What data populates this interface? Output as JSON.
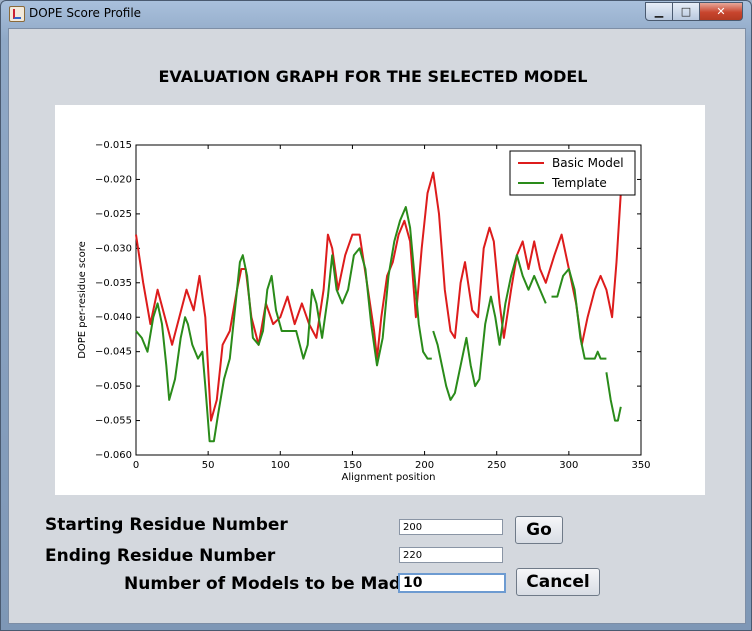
{
  "window": {
    "title": "DOPE Score Profile",
    "minimize_glyph": "▁",
    "maximize_glyph": "□",
    "close_glyph": "✕"
  },
  "heading": "EVALUATION GRAPH FOR THE SELECTED MODEL",
  "form": {
    "start_label": "Starting Residue Number",
    "start_value": "200",
    "end_label": "Ending Residue Number",
    "end_value": "220",
    "models_label": "Number of Models to be Made",
    "models_value": "10",
    "go_label": "Go",
    "cancel_label": "Cancel"
  },
  "chart_data": {
    "type": "line",
    "title": "",
    "xlabel": "Alignment position",
    "ylabel": "DOPE per-residue score",
    "xlim": [
      0,
      350
    ],
    "ylim": [
      -0.06,
      -0.015
    ],
    "x_ticks": [
      0,
      50,
      100,
      150,
      200,
      250,
      300,
      350
    ],
    "y_ticks": [
      -0.06,
      -0.055,
      -0.05,
      -0.045,
      -0.04,
      -0.035,
      -0.03,
      -0.025,
      -0.02,
      -0.015
    ],
    "legend_position": "top-right",
    "series": [
      {
        "name": "Basic Model",
        "color": "#dd1c1c",
        "points": [
          [
            0,
            -0.028
          ],
          [
            5,
            -0.035
          ],
          [
            10,
            -0.041
          ],
          [
            15,
            -0.036
          ],
          [
            20,
            -0.04
          ],
          [
            25,
            -0.044
          ],
          [
            30,
            -0.04
          ],
          [
            35,
            -0.036
          ],
          [
            40,
            -0.039
          ],
          [
            44,
            -0.034
          ],
          [
            48,
            -0.04
          ],
          [
            52,
            -0.055
          ],
          [
            56,
            -0.052
          ],
          [
            60,
            -0.044
          ],
          [
            65,
            -0.042
          ],
          [
            70,
            -0.036
          ],
          [
            73,
            -0.033
          ],
          [
            76,
            -0.033
          ],
          [
            80,
            -0.04
          ],
          [
            85,
            -0.044
          ],
          [
            90,
            -0.038
          ],
          [
            95,
            -0.041
          ],
          [
            100,
            -0.04
          ],
          [
            105,
            -0.037
          ],
          [
            110,
            -0.041
          ],
          [
            115,
            -0.038
          ],
          [
            120,
            -0.041
          ],
          [
            125,
            -0.043
          ],
          [
            130,
            -0.036
          ],
          [
            133,
            -0.028
          ],
          [
            136,
            -0.03
          ],
          [
            140,
            -0.036
          ],
          [
            145,
            -0.031
          ],
          [
            150,
            -0.028
          ],
          [
            155,
            -0.028
          ],
          [
            160,
            -0.035
          ],
          [
            165,
            -0.042
          ],
          [
            167,
            -0.046
          ],
          [
            170,
            -0.04
          ],
          [
            174,
            -0.034
          ],
          [
            178,
            -0.032
          ],
          [
            182,
            -0.028
          ],
          [
            186,
            -0.026
          ],
          [
            190,
            -0.029
          ],
          [
            194,
            -0.04
          ],
          [
            198,
            -0.03
          ],
          [
            202,
            -0.022
          ],
          [
            206,
            -0.019
          ],
          [
            210,
            -0.025
          ],
          [
            214,
            -0.036
          ],
          [
            218,
            -0.042
          ],
          [
            221,
            -0.043
          ],
          [
            225,
            -0.035
          ],
          [
            228,
            -0.032
          ],
          [
            233,
            -0.039
          ],
          [
            237,
            -0.04
          ],
          [
            241,
            -0.03
          ],
          [
            245,
            -0.027
          ],
          [
            248,
            -0.029
          ],
          [
            252,
            -0.038
          ],
          [
            255,
            -0.043
          ],
          [
            260,
            -0.036
          ],
          [
            264,
            -0.031
          ],
          [
            268,
            -0.029
          ],
          [
            272,
            -0.033
          ],
          [
            276,
            -0.029
          ],
          [
            280,
            -0.033
          ],
          [
            284,
            -0.035
          ],
          [
            290,
            -0.031
          ],
          [
            295,
            -0.028
          ],
          [
            300,
            -0.033
          ],
          [
            305,
            -0.038
          ],
          [
            309,
            -0.044
          ],
          [
            313,
            -0.04
          ],
          [
            318,
            -0.036
          ],
          [
            322,
            -0.034
          ],
          [
            326,
            -0.036
          ],
          [
            330,
            -0.04
          ],
          [
            333,
            -0.032
          ],
          [
            336,
            -0.022
          ]
        ]
      },
      {
        "name": "Template",
        "color": "#2a8b1a",
        "segments": [
          [
            [
              0,
              -0.042
            ],
            [
              4,
              -0.043
            ],
            [
              8,
              -0.045
            ],
            [
              12,
              -0.04
            ],
            [
              15,
              -0.038
            ],
            [
              18,
              -0.041
            ],
            [
              21,
              -0.047
            ],
            [
              23,
              -0.052
            ],
            [
              27,
              -0.049
            ],
            [
              31,
              -0.043
            ],
            [
              34,
              -0.04
            ],
            [
              36,
              -0.041
            ],
            [
              39,
              -0.044
            ],
            [
              43,
              -0.046
            ],
            [
              46,
              -0.045
            ],
            [
              48,
              -0.05
            ],
            [
              51,
              -0.058
            ],
            [
              54,
              -0.058
            ],
            [
              57,
              -0.054
            ],
            [
              61,
              -0.049
            ],
            [
              65,
              -0.046
            ],
            [
              69,
              -0.038
            ],
            [
              72,
              -0.032
            ],
            [
              74,
              -0.031
            ],
            [
              77,
              -0.034
            ],
            [
              81,
              -0.043
            ],
            [
              85,
              -0.044
            ],
            [
              88,
              -0.042
            ],
            [
              91,
              -0.036
            ],
            [
              94,
              -0.034
            ],
            [
              97,
              -0.039
            ],
            [
              101,
              -0.042
            ],
            [
              106,
              -0.042
            ],
            [
              111,
              -0.042
            ],
            [
              116,
              -0.046
            ],
            [
              119,
              -0.044
            ],
            [
              122,
              -0.036
            ],
            [
              125,
              -0.038
            ],
            [
              129,
              -0.043
            ],
            [
              133,
              -0.037
            ],
            [
              136,
              -0.031
            ],
            [
              139,
              -0.036
            ],
            [
              143,
              -0.038
            ],
            [
              147,
              -0.036
            ],
            [
              151,
              -0.031
            ],
            [
              155,
              -0.03
            ],
            [
              159,
              -0.033
            ],
            [
              163,
              -0.041
            ],
            [
              167,
              -0.047
            ],
            [
              171,
              -0.043
            ],
            [
              175,
              -0.034
            ],
            [
              179,
              -0.029
            ],
            [
              183,
              -0.026
            ],
            [
              187,
              -0.024
            ],
            [
              190,
              -0.027
            ],
            [
              193,
              -0.034
            ],
            [
              196,
              -0.041
            ],
            [
              199,
              -0.045
            ],
            [
              202,
              -0.046
            ],
            [
              205,
              -0.046
            ]
          ],
          [
            [
              206,
              -0.042
            ],
            [
              209,
              -0.044
            ],
            [
              212,
              -0.047
            ],
            [
              215,
              -0.05
            ],
            [
              218,
              -0.052
            ],
            [
              221,
              -0.051
            ],
            [
              224,
              -0.048
            ],
            [
              227,
              -0.045
            ],
            [
              229,
              -0.043
            ],
            [
              232,
              -0.047
            ],
            [
              235,
              -0.05
            ],
            [
              238,
              -0.049
            ],
            [
              242,
              -0.041
            ],
            [
              246,
              -0.037
            ],
            [
              249,
              -0.04
            ],
            [
              252,
              -0.044
            ],
            [
              256,
              -0.038
            ],
            [
              260,
              -0.034
            ],
            [
              264,
              -0.031
            ],
            [
              268,
              -0.034
            ],
            [
              272,
              -0.036
            ],
            [
              276,
              -0.034
            ],
            [
              280,
              -0.036
            ],
            [
              284,
              -0.038
            ]
          ],
          [
            [
              288,
              -0.037
            ],
            [
              292,
              -0.037
            ],
            [
              296,
              -0.034
            ],
            [
              300,
              -0.033
            ],
            [
              304,
              -0.036
            ],
            [
              308,
              -0.043
            ],
            [
              311,
              -0.046
            ],
            [
              315,
              -0.046
            ],
            [
              318,
              -0.046
            ],
            [
              320,
              -0.045
            ],
            [
              322,
              -0.046
            ],
            [
              326,
              -0.046
            ]
          ],
          [
            [
              326,
              -0.048
            ],
            [
              329,
              -0.052
            ],
            [
              332,
              -0.055
            ],
            [
              334,
              -0.055
            ],
            [
              336,
              -0.053
            ]
          ]
        ]
      }
    ]
  }
}
